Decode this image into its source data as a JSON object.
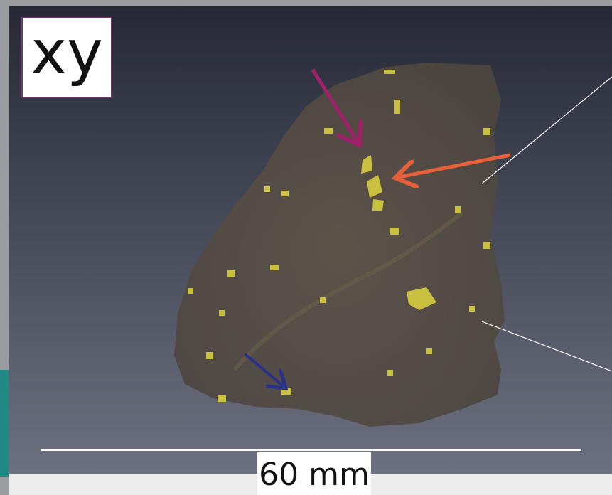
{
  "panel_label": "xy",
  "scale_bar": {
    "label": "60 mm"
  }
}
